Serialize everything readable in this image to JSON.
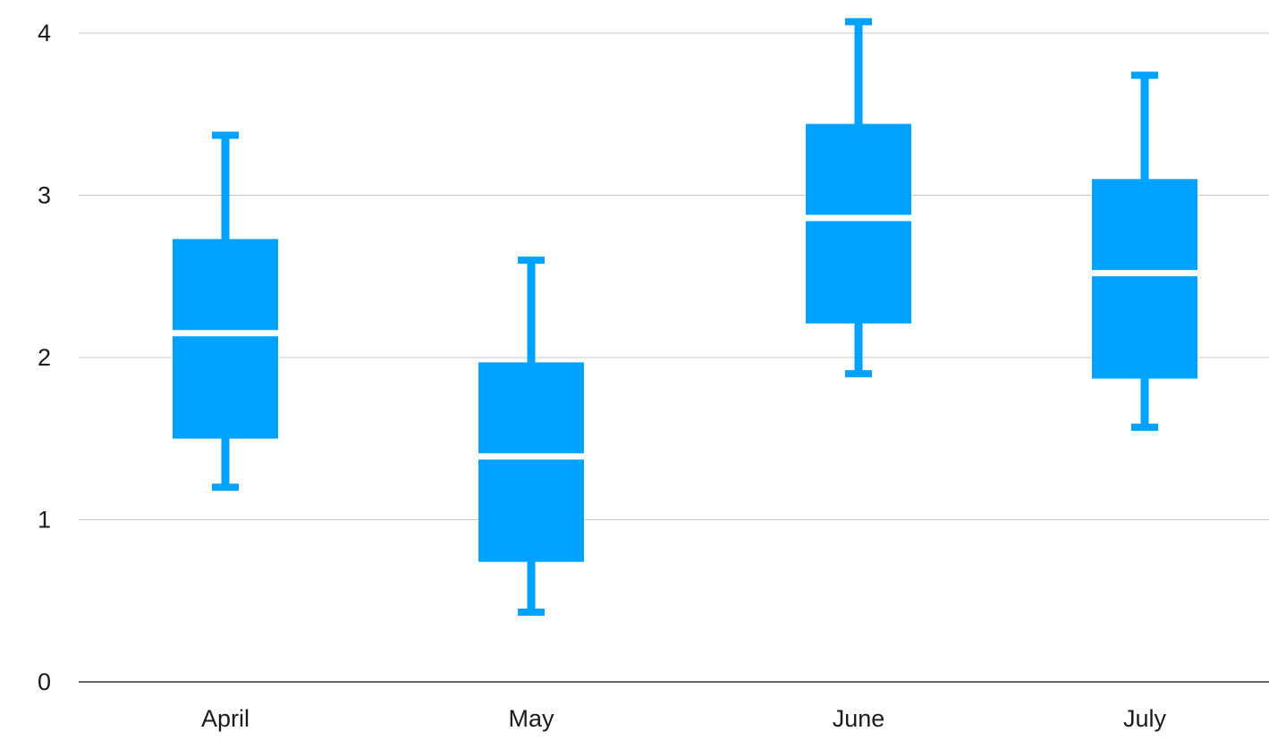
{
  "chart_data": {
    "type": "box",
    "title": "",
    "xlabel": "",
    "ylabel": "",
    "categories": [
      "April",
      "May",
      "June",
      "July"
    ],
    "boxes": [
      {
        "category": "April",
        "min": 1.2,
        "q1": 1.5,
        "median": 2.15,
        "q3": 2.73,
        "max": 3.37
      },
      {
        "category": "May",
        "min": 0.43,
        "q1": 0.74,
        "median": 1.39,
        "q3": 1.97,
        "max": 2.6
      },
      {
        "category": "June",
        "min": 1.9,
        "q1": 2.21,
        "median": 2.86,
        "q3": 3.44,
        "max": 4.07
      },
      {
        "category": "July",
        "min": 1.57,
        "q1": 1.87,
        "median": 2.52,
        "q3": 3.1,
        "max": 3.74
      }
    ],
    "ylim": [
      0,
      4
    ],
    "yticks": [
      0,
      1,
      2,
      3,
      4
    ],
    "grid": true,
    "legend": "none",
    "colors": {
      "box": "#00a2ff",
      "median": "#ffffff",
      "grid": "#c8c8c8",
      "axis": "#333333"
    }
  }
}
